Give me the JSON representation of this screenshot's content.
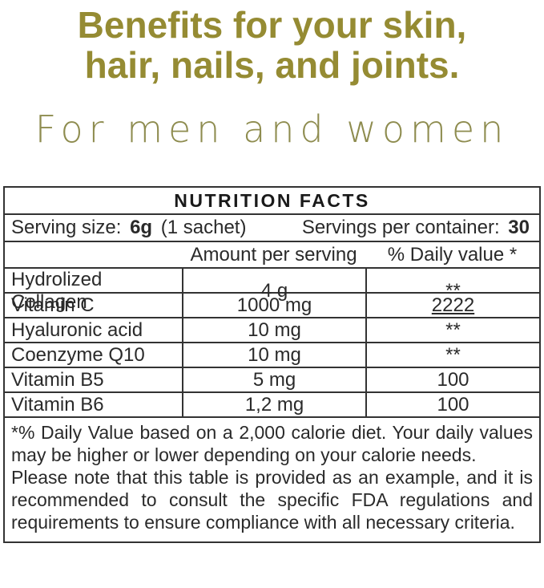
{
  "colors": {
    "headline": "#958B33",
    "subtitle": "#8E8C4F",
    "table_text": "#2a2a2a",
    "border": "#333333"
  },
  "header": {
    "headline_line1": "Benefits for your skin,",
    "headline_line2": "hair, nails, and joints.",
    "subtitle": "For men and women"
  },
  "nutrition_table": {
    "title": "NUTRITION FACTS",
    "serving": {
      "size_label": "Serving size:",
      "size_value": "6g",
      "size_note": "(1 sachet)",
      "per_container_label": "Servings per container:",
      "per_container_value": "30"
    },
    "columns": {
      "amount": "Amount per serving",
      "daily_value": "% Daily value *"
    },
    "rows": [
      {
        "name": "Hydrolized Collagen",
        "amount": "4 g",
        "daily_value": "**"
      },
      {
        "name": "Vitamin C",
        "amount": "1000 mg",
        "daily_value": "2222"
      },
      {
        "name": "Hyaluronic acid",
        "amount": "10 mg",
        "daily_value": "**"
      },
      {
        "name": "Coenzyme Q10",
        "amount": "10 mg",
        "daily_value": "**"
      },
      {
        "name": "Vitamin B5",
        "amount": "5 mg",
        "daily_value": "100"
      },
      {
        "name": "Vitamin B6",
        "amount": "1,2 mg",
        "daily_value": "100"
      }
    ],
    "footnotes": [
      "*% Daily Value based on a 2,000 calorie diet. Your daily values may be higher or lower depending on your calorie needs.",
      "Please note that this table is provided as an example, and it is recommended to consult the specific FDA regulations and requirements to ensure compliance with all necessary criteria."
    ]
  }
}
